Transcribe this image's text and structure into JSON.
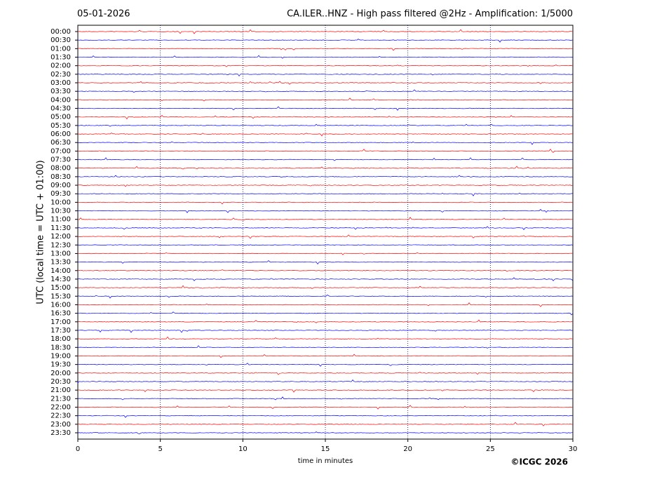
{
  "chart_data": {
    "type": "helicorder",
    "date": "05-01-2026",
    "title": "CA.ILER..HNZ - High pass filtered @2Hz - Amplification: 1/5000",
    "ylabel": "UTC (local time = UTC + 01:00)",
    "xlabel": "time in minutes",
    "credit": "©ICGC 2026",
    "categories": [
      "00:00",
      "00:30",
      "01:00",
      "01:30",
      "02:00",
      "02:30",
      "03:00",
      "03:30",
      "04:00",
      "04:30",
      "05:00",
      "05:30",
      "06:00",
      "06:30",
      "07:00",
      "07:30",
      "08:00",
      "08:30",
      "09:00",
      "09:30",
      "10:00",
      "10:30",
      "11:00",
      "11:30",
      "12:00",
      "12:30",
      "13:00",
      "13:30",
      "14:00",
      "14:30",
      "15:00",
      "15:30",
      "16:00",
      "16:30",
      "17:00",
      "17:30",
      "18:00",
      "18:30",
      "19:00",
      "19:30",
      "20:00",
      "20:30",
      "21:00",
      "21:30",
      "22:00",
      "22:30",
      "23:00",
      "23:30"
    ],
    "colors": [
      "#ff0000",
      "#0000ff"
    ],
    "xlim": [
      0,
      30
    ],
    "xticks": [
      0,
      5,
      10,
      15,
      20,
      25,
      30
    ],
    "grid": true
  }
}
